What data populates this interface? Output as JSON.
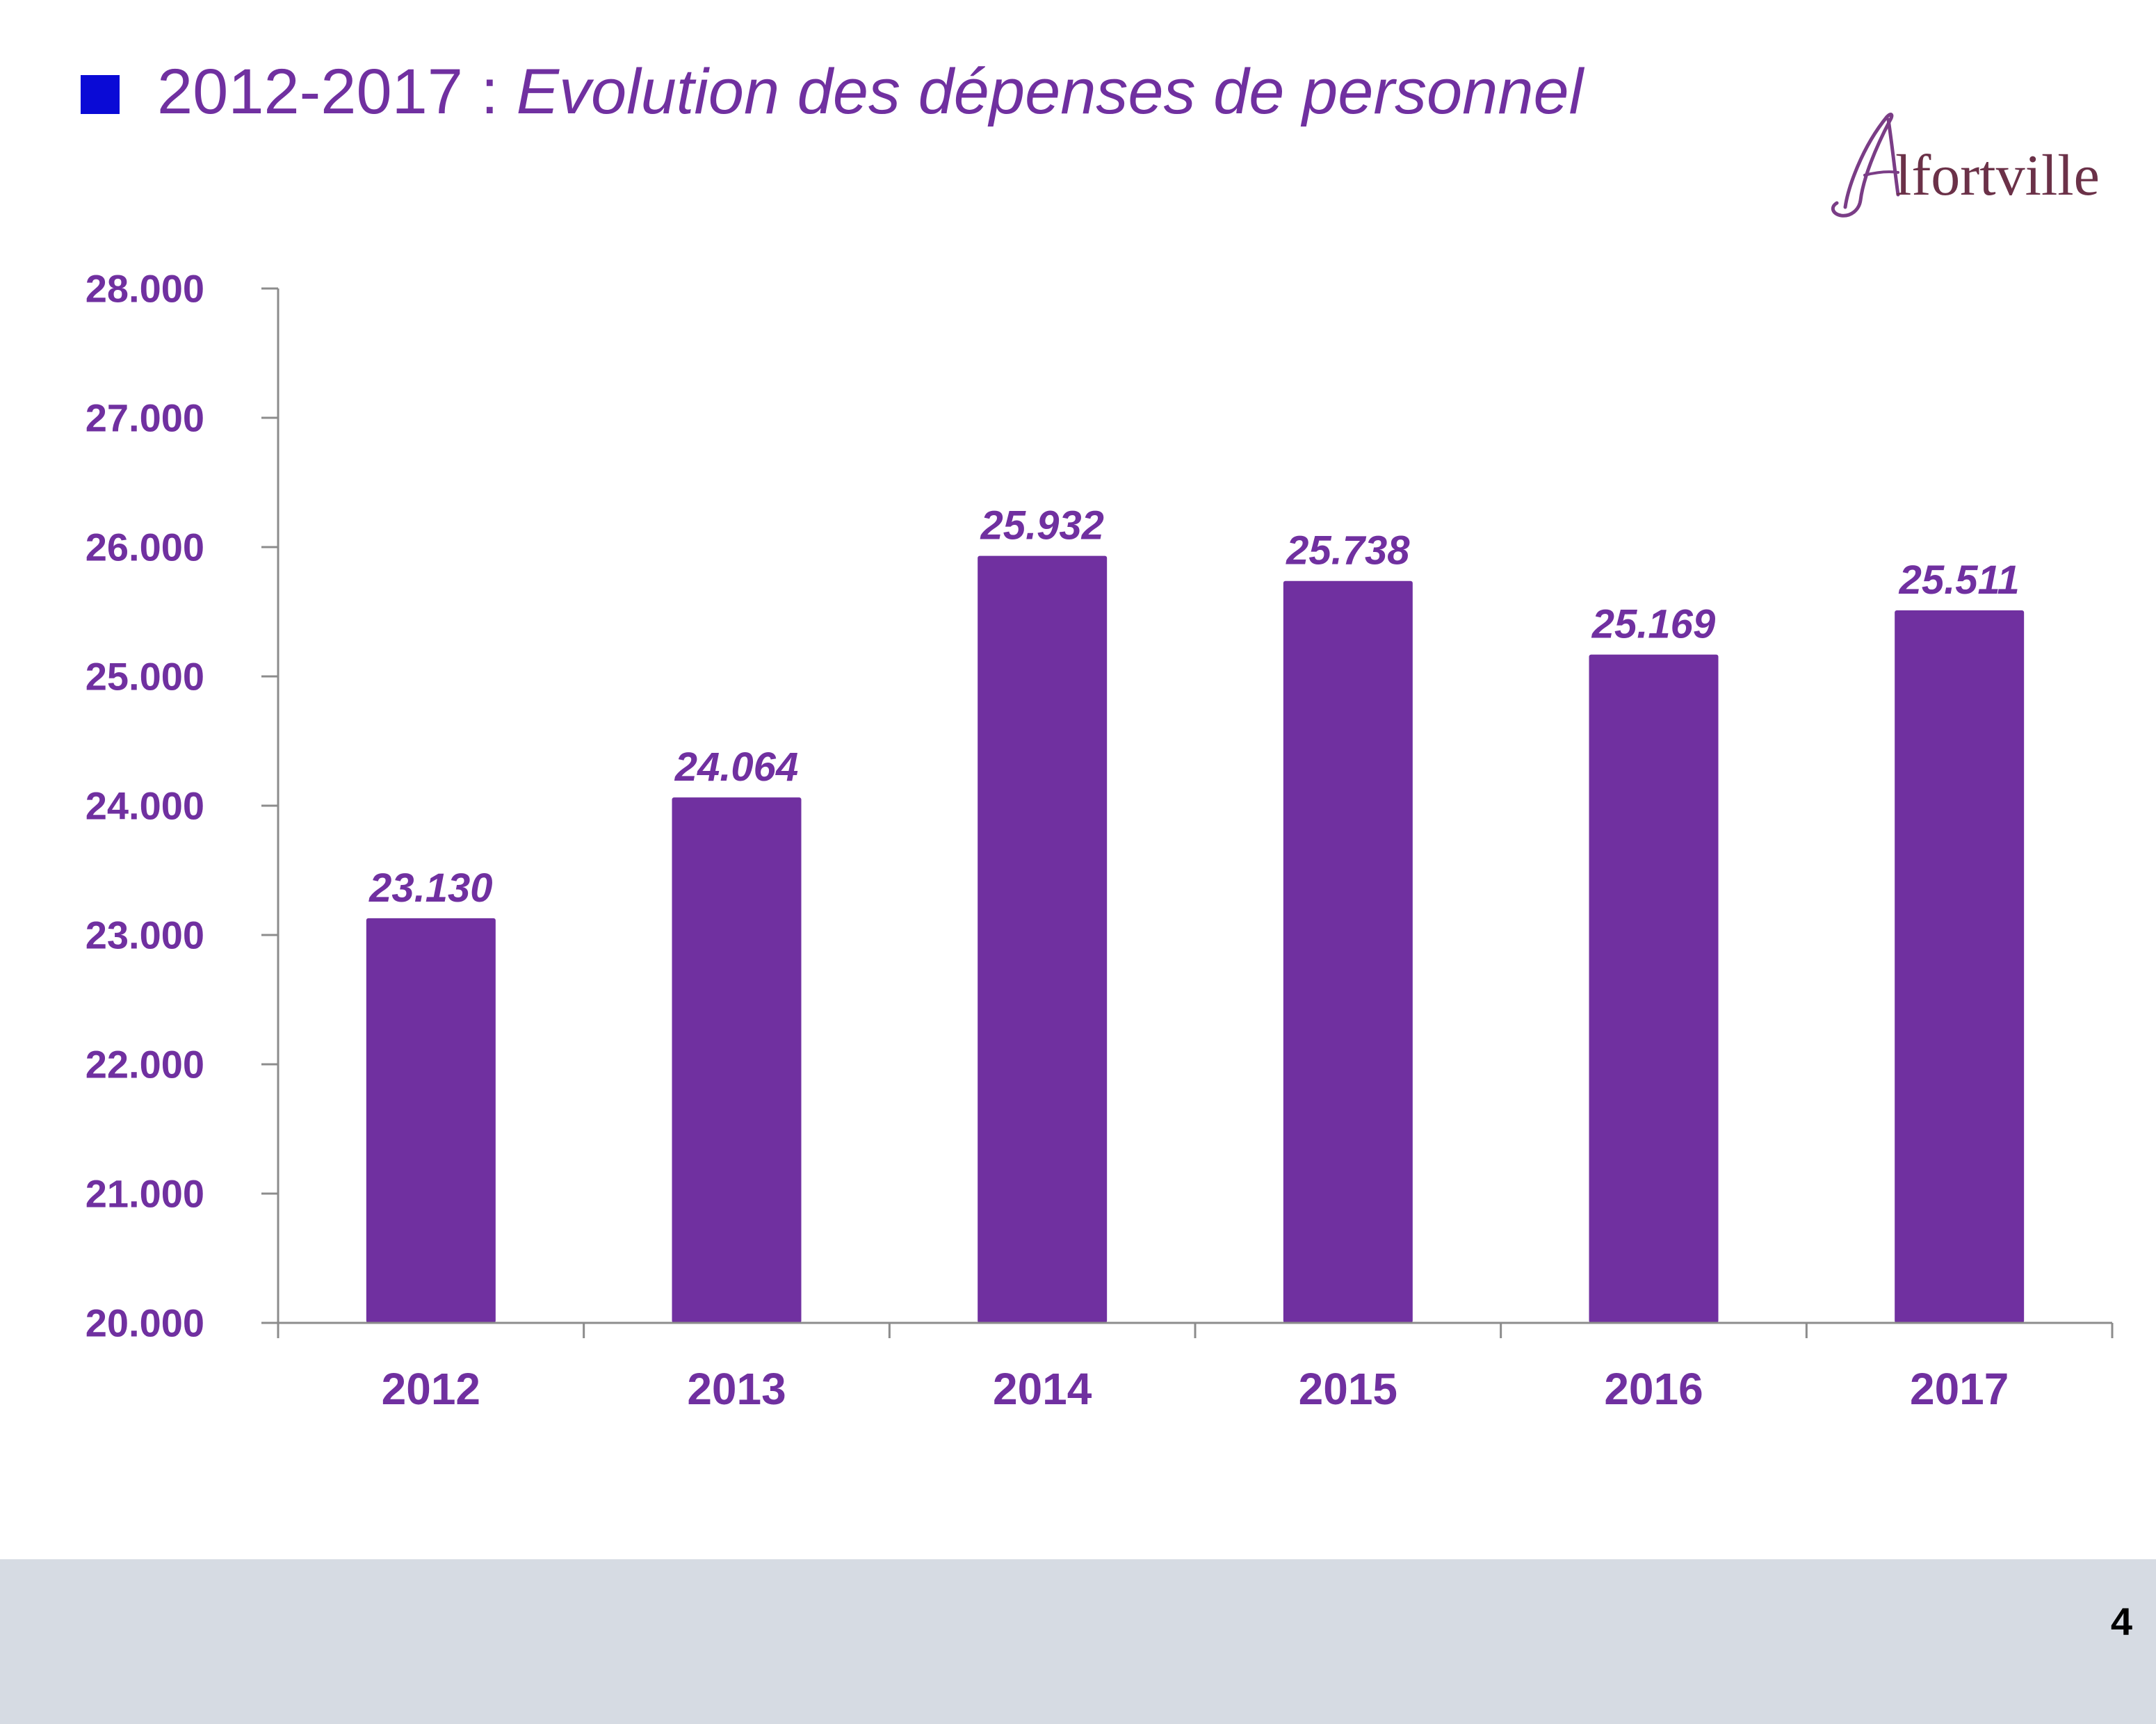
{
  "slide": {
    "title_prefix": "2012-2017 : ",
    "title_emphasis": "Evolution des dépenses de personnel",
    "page_number": "4"
  },
  "logo": {
    "text": "Alfortville"
  },
  "colors": {
    "bar": "#7030A0",
    "text_accent": "#7030A0",
    "bullet": "#0A0AD6",
    "footer": "#D6DBE3"
  },
  "chart_data": {
    "type": "bar",
    "categories": [
      "2012",
      "2013",
      "2014",
      "2015",
      "2016",
      "2017"
    ],
    "values": [
      23130,
      24064,
      25932,
      25738,
      25169,
      25511
    ],
    "value_labels": [
      "23.130",
      "24.064",
      "25.932",
      "25.738",
      "25.169",
      "25.511"
    ],
    "ylim": [
      20000,
      28000
    ],
    "yticks": [
      20000,
      21000,
      22000,
      23000,
      24000,
      25000,
      26000,
      27000,
      28000
    ],
    "ytick_labels": [
      "20.000",
      "21.000",
      "22.000",
      "23.000",
      "24.000",
      "25.000",
      "26.000",
      "27.000",
      "28.000"
    ],
    "xlabel": "",
    "ylabel": "",
    "grid": false,
    "legend": "none"
  }
}
